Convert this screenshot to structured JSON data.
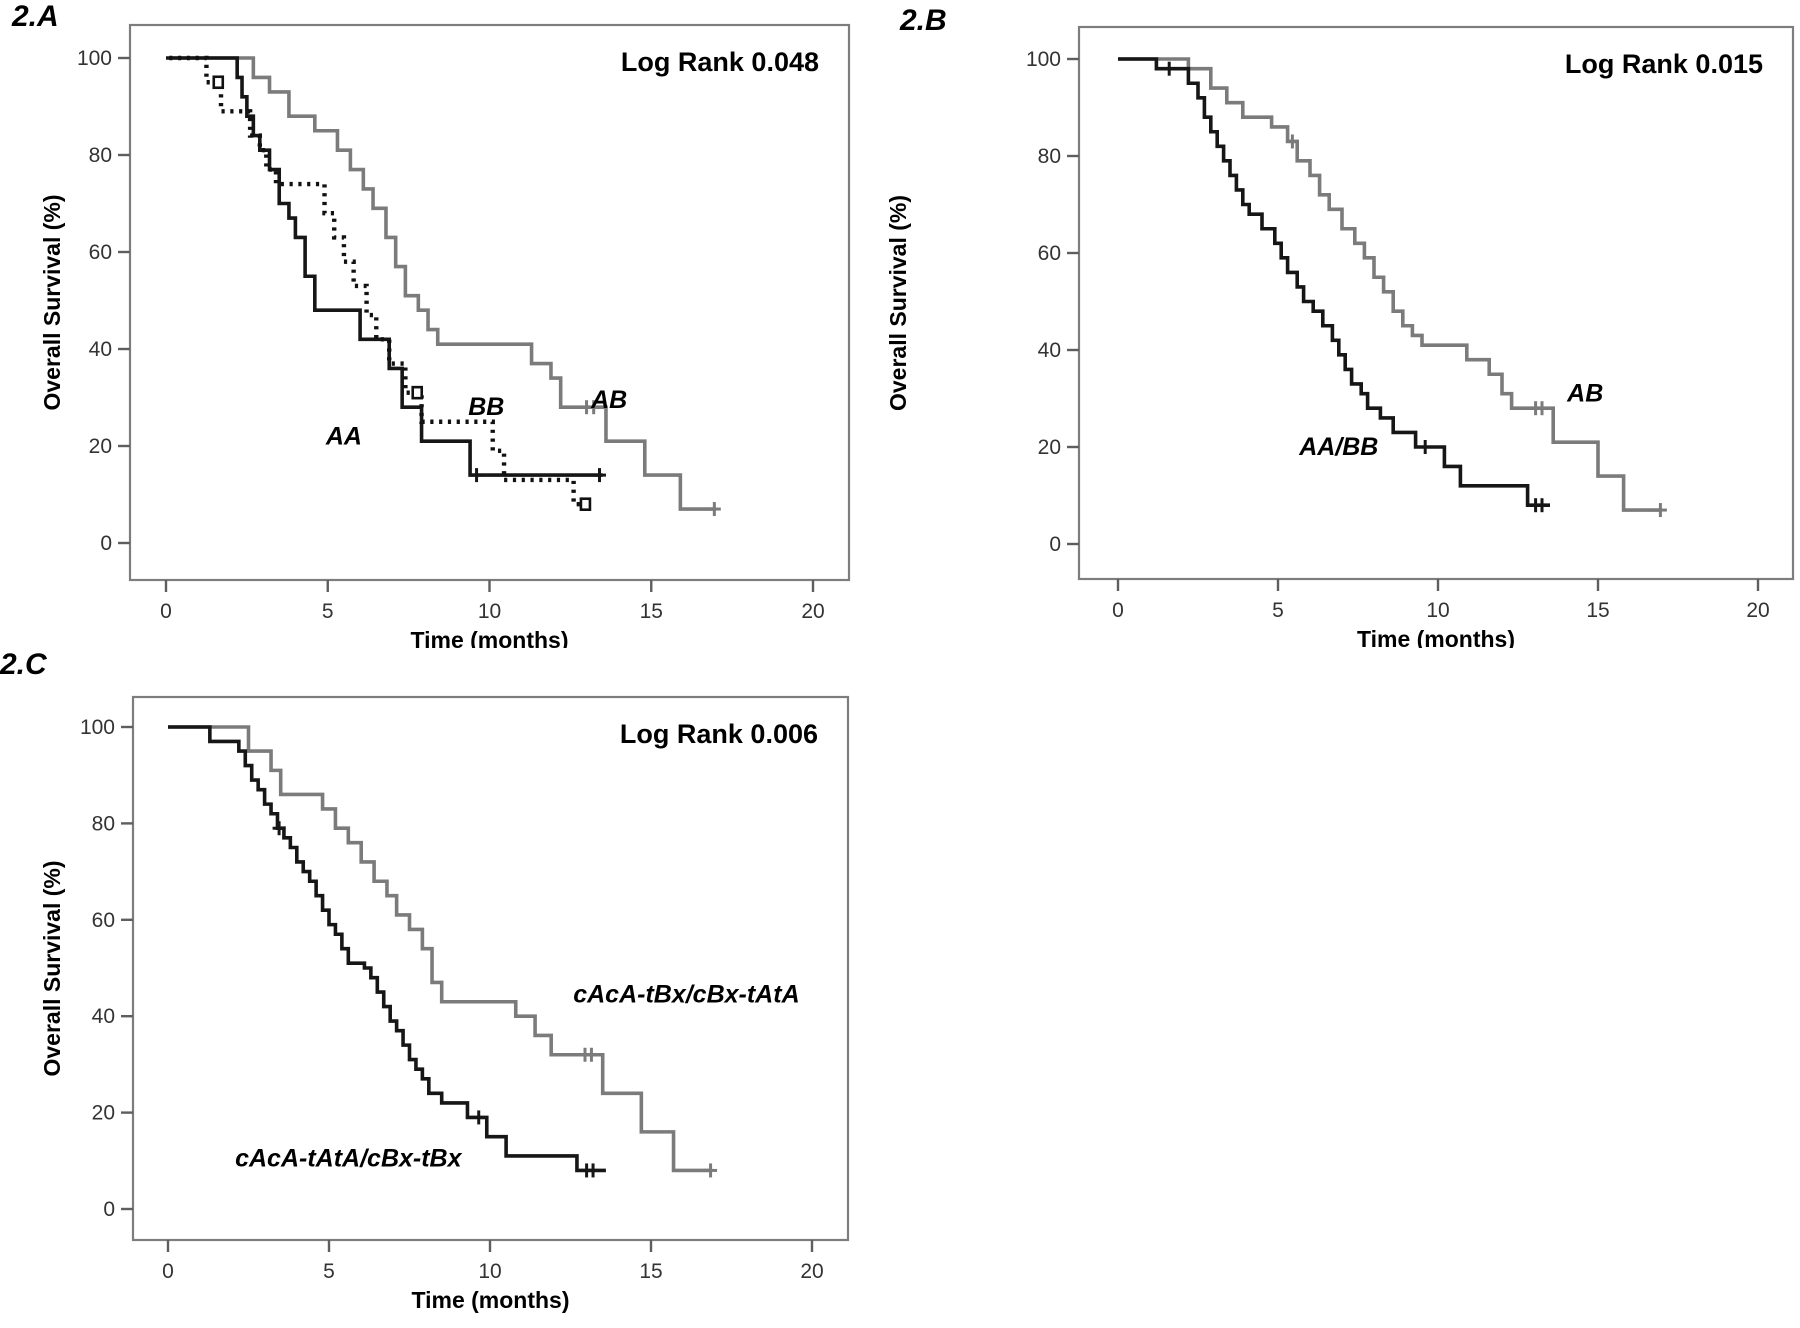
{
  "figure": {
    "panels": [
      {
        "tag": "2.A"
      },
      {
        "tag": "2.B"
      },
      {
        "tag": "2.C"
      }
    ]
  },
  "colors": {
    "black_series": "#161616",
    "gray_series": "#7b7b7b",
    "frame": "#7d7d7d",
    "tick_text": "#333333"
  },
  "chart_data": [
    {
      "type": "line",
      "subtype": "kaplan-meier-step",
      "panel_tag": "2.A",
      "annotation": "Log Rank 0.048",
      "xlabel": "Time (months)",
      "ylabel": "Overall Survival (%)",
      "xticks": [
        0,
        5,
        10,
        15,
        20
      ],
      "yticks": [
        0,
        20,
        40,
        60,
        80,
        100
      ],
      "xlim": [
        -1.1,
        21.2
      ],
      "ylim": [
        -8,
        107
      ],
      "grid": false,
      "legend_position": "labels-on-plot",
      "series": [
        {
          "name": "AB",
          "color": "#7b7b7b",
          "dash": "solid",
          "label": {
            "text": "AB",
            "x": 13.7,
            "y": 29.5
          },
          "points": [
            [
              0.2,
              100
            ],
            [
              2.7,
              96
            ],
            [
              3.2,
              93
            ],
            [
              3.8,
              88
            ],
            [
              4.6,
              85
            ],
            [
              5.3,
              81
            ],
            [
              5.7,
              77
            ],
            [
              6.1,
              73
            ],
            [
              6.4,
              69
            ],
            [
              6.8,
              63
            ],
            [
              7.1,
              57
            ],
            [
              7.4,
              51
            ],
            [
              7.8,
              48
            ],
            [
              8.1,
              44
            ],
            [
              8.4,
              41
            ],
            [
              11.3,
              37
            ],
            [
              11.9,
              34
            ],
            [
              12.2,
              28
            ],
            [
              13.6,
              21
            ],
            [
              14.8,
              14
            ],
            [
              15.9,
              7
            ],
            [
              17.0,
              7
            ]
          ],
          "censors": [
            [
              13.0,
              28
            ],
            [
              13.22,
              28
            ],
            [
              16.95,
              7
            ]
          ],
          "censor_style": "plus"
        },
        {
          "name": "AA",
          "color": "#161616",
          "dash": "solid",
          "label": {
            "text": "AA",
            "x": 5.5,
            "y": 22
          },
          "points": [
            [
              0,
              100
            ],
            [
              2.2,
              96
            ],
            [
              2.35,
              92
            ],
            [
              2.5,
              88
            ],
            [
              2.7,
              84
            ],
            [
              2.9,
              81
            ],
            [
              3.2,
              77
            ],
            [
              3.5,
              70
            ],
            [
              3.8,
              67
            ],
            [
              4.0,
              63
            ],
            [
              4.3,
              55
            ],
            [
              4.6,
              48
            ],
            [
              6.0,
              42
            ],
            [
              6.9,
              36
            ],
            [
              7.3,
              28
            ],
            [
              7.9,
              21
            ],
            [
              9.4,
              14
            ],
            [
              13.5,
              14
            ]
          ],
          "censors": [
            [
              9.6,
              14
            ],
            [
              13.4,
              14
            ]
          ],
          "censor_style": "plus"
        },
        {
          "name": "BB",
          "color": "#111111",
          "dash": "dotted",
          "label": {
            "text": "BB",
            "x": 9.9,
            "y": 28
          },
          "points": [
            [
              0.1,
              100
            ],
            [
              1.25,
              95
            ],
            [
              1.7,
              89
            ],
            [
              2.6,
              84
            ],
            [
              2.9,
              81
            ],
            [
              3.1,
              77
            ],
            [
              3.4,
              74
            ],
            [
              4.9,
              68
            ],
            [
              5.2,
              63
            ],
            [
              5.5,
              58
            ],
            [
              5.8,
              53
            ],
            [
              6.2,
              47
            ],
            [
              6.5,
              42
            ],
            [
              6.9,
              37
            ],
            [
              7.4,
              31
            ],
            [
              7.9,
              25
            ],
            [
              10.1,
              19
            ],
            [
              10.45,
              13
            ],
            [
              12.6,
              8
            ],
            [
              12.95,
              8
            ]
          ],
          "censors": [
            [
              1.6,
              95
            ],
            [
              7.75,
              31
            ],
            [
              12.95,
              8
            ]
          ],
          "censor_style": "square"
        }
      ]
    },
    {
      "type": "line",
      "subtype": "kaplan-meier-step",
      "panel_tag": "2.B",
      "annotation": "Log Rank 0.015",
      "xlabel": "Time (months)",
      "ylabel": "Overall Survival (%)",
      "xticks": [
        0,
        5,
        10,
        15,
        20
      ],
      "yticks": [
        0,
        20,
        40,
        60,
        80,
        100
      ],
      "xlim": [
        -1.1,
        21.2
      ],
      "ylim": [
        -8,
        107
      ],
      "grid": false,
      "legend_position": "labels-on-plot",
      "series": [
        {
          "name": "AB",
          "color": "#7b7b7b",
          "dash": "solid",
          "label": {
            "text": "AB",
            "x": 14.6,
            "y": 31
          },
          "points": [
            [
              0,
              100
            ],
            [
              2.2,
              98
            ],
            [
              2.9,
              94
            ],
            [
              3.4,
              91
            ],
            [
              3.9,
              88
            ],
            [
              4.8,
              86
            ],
            [
              5.3,
              83
            ],
            [
              5.6,
              79
            ],
            [
              6.0,
              76
            ],
            [
              6.3,
              72
            ],
            [
              6.6,
              69
            ],
            [
              7.0,
              65
            ],
            [
              7.4,
              62
            ],
            [
              7.7,
              59
            ],
            [
              8.0,
              55
            ],
            [
              8.3,
              52
            ],
            [
              8.6,
              48
            ],
            [
              8.9,
              45
            ],
            [
              9.2,
              43
            ],
            [
              9.5,
              41
            ],
            [
              10.9,
              38
            ],
            [
              11.6,
              35
            ],
            [
              12.0,
              31
            ],
            [
              12.3,
              28
            ],
            [
              13.6,
              21
            ],
            [
              15.0,
              14
            ],
            [
              15.8,
              7
            ],
            [
              17.0,
              7
            ]
          ],
          "censors": [
            [
              5.45,
              83
            ],
            [
              13.05,
              28
            ],
            [
              13.25,
              28
            ],
            [
              16.95,
              7
            ]
          ],
          "censor_style": "plus"
        },
        {
          "name": "AA/BB",
          "color": "#161616",
          "dash": "solid",
          "label": {
            "text": "AA/BB",
            "x": 6.9,
            "y": 20
          },
          "points": [
            [
              0,
              100
            ],
            [
              1.2,
              98
            ],
            [
              2.2,
              95
            ],
            [
              2.5,
              92
            ],
            [
              2.7,
              88
            ],
            [
              2.9,
              85
            ],
            [
              3.1,
              82
            ],
            [
              3.3,
              79
            ],
            [
              3.5,
              76
            ],
            [
              3.7,
              73
            ],
            [
              3.9,
              70
            ],
            [
              4.1,
              68
            ],
            [
              4.5,
              65
            ],
            [
              4.9,
              62
            ],
            [
              5.1,
              59
            ],
            [
              5.3,
              56
            ],
            [
              5.6,
              53
            ],
            [
              5.8,
              50
            ],
            [
              6.1,
              48
            ],
            [
              6.4,
              45
            ],
            [
              6.7,
              42
            ],
            [
              6.9,
              39
            ],
            [
              7.1,
              36
            ],
            [
              7.3,
              33
            ],
            [
              7.6,
              31
            ],
            [
              7.8,
              28
            ],
            [
              8.2,
              26
            ],
            [
              8.6,
              23
            ],
            [
              9.3,
              20
            ],
            [
              10.2,
              16
            ],
            [
              10.7,
              12
            ],
            [
              12.8,
              8
            ],
            [
              13.5,
              8
            ]
          ],
          "censors": [
            [
              1.6,
              98
            ],
            [
              9.6,
              20
            ],
            [
              13.05,
              8
            ],
            [
              13.25,
              8
            ]
          ],
          "censor_style": "plus"
        }
      ]
    },
    {
      "type": "line",
      "subtype": "kaplan-meier-step",
      "panel_tag": "2.C",
      "annotation": "Log Rank 0.006",
      "xlabel": "Time (months)",
      "ylabel": "Overall Survival (%)",
      "xticks": [
        0,
        5,
        10,
        15,
        20
      ],
      "yticks": [
        0,
        20,
        40,
        60,
        80,
        100
      ],
      "xlim": [
        -1.1,
        21.2
      ],
      "ylim": [
        -8,
        107
      ],
      "grid": false,
      "legend_position": "labels-on-plot",
      "series": [
        {
          "name": "cAcA-tBx/cBx-tAtA",
          "color": "#7b7b7b",
          "dash": "solid",
          "label": {
            "text": "cAcA-tBx/cBx-tAtA",
            "x": 16.1,
            "y": 44.5
          },
          "points": [
            [
              0,
              100
            ],
            [
              2.5,
              95
            ],
            [
              3.2,
              91
            ],
            [
              3.5,
              86
            ],
            [
              4.8,
              83
            ],
            [
              5.2,
              79
            ],
            [
              5.6,
              76
            ],
            [
              6.0,
              72
            ],
            [
              6.4,
              68
            ],
            [
              6.8,
              65
            ],
            [
              7.1,
              61
            ],
            [
              7.5,
              58
            ],
            [
              7.9,
              54
            ],
            [
              8.2,
              47
            ],
            [
              8.5,
              43
            ],
            [
              10.8,
              40
            ],
            [
              11.4,
              36
            ],
            [
              11.9,
              32
            ],
            [
              13.5,
              24
            ],
            [
              14.7,
              16
            ],
            [
              15.7,
              8
            ],
            [
              16.9,
              8
            ]
          ],
          "censors": [
            [
              12.95,
              32
            ],
            [
              13.15,
              32
            ],
            [
              16.85,
              8
            ]
          ],
          "censor_style": "plus"
        },
        {
          "name": "cAcA-tAtA/cBx-tBx",
          "color": "#161616",
          "dash": "solid",
          "label": {
            "text": "cAcA-tAtA/cBx-tBx",
            "x": 5.6,
            "y": 10.5
          },
          "points": [
            [
              0,
              100
            ],
            [
              1.3,
              97
            ],
            [
              2.2,
              95
            ],
            [
              2.4,
              92
            ],
            [
              2.6,
              89
            ],
            [
              2.8,
              87
            ],
            [
              3.0,
              84
            ],
            [
              3.2,
              82
            ],
            [
              3.4,
              79
            ],
            [
              3.6,
              77
            ],
            [
              3.8,
              75
            ],
            [
              4.0,
              72
            ],
            [
              4.2,
              70
            ],
            [
              4.4,
              68
            ],
            [
              4.6,
              65
            ],
            [
              4.8,
              62
            ],
            [
              5.0,
              59
            ],
            [
              5.2,
              57
            ],
            [
              5.4,
              54
            ],
            [
              5.6,
              51
            ],
            [
              6.1,
              50
            ],
            [
              6.3,
              48
            ],
            [
              6.5,
              45
            ],
            [
              6.7,
              42
            ],
            [
              6.9,
              39
            ],
            [
              7.1,
              37
            ],
            [
              7.3,
              34
            ],
            [
              7.5,
              31
            ],
            [
              7.7,
              29
            ],
            [
              7.9,
              27
            ],
            [
              8.1,
              24
            ],
            [
              8.5,
              22
            ],
            [
              9.3,
              19
            ],
            [
              9.9,
              15
            ],
            [
              10.5,
              11
            ],
            [
              12.7,
              8
            ],
            [
              13.6,
              8
            ]
          ],
          "censors": [
            [
              3.45,
              79
            ],
            [
              9.65,
              19
            ],
            [
              13.0,
              8
            ],
            [
              13.2,
              8
            ]
          ],
          "censor_style": "plus"
        }
      ]
    }
  ]
}
